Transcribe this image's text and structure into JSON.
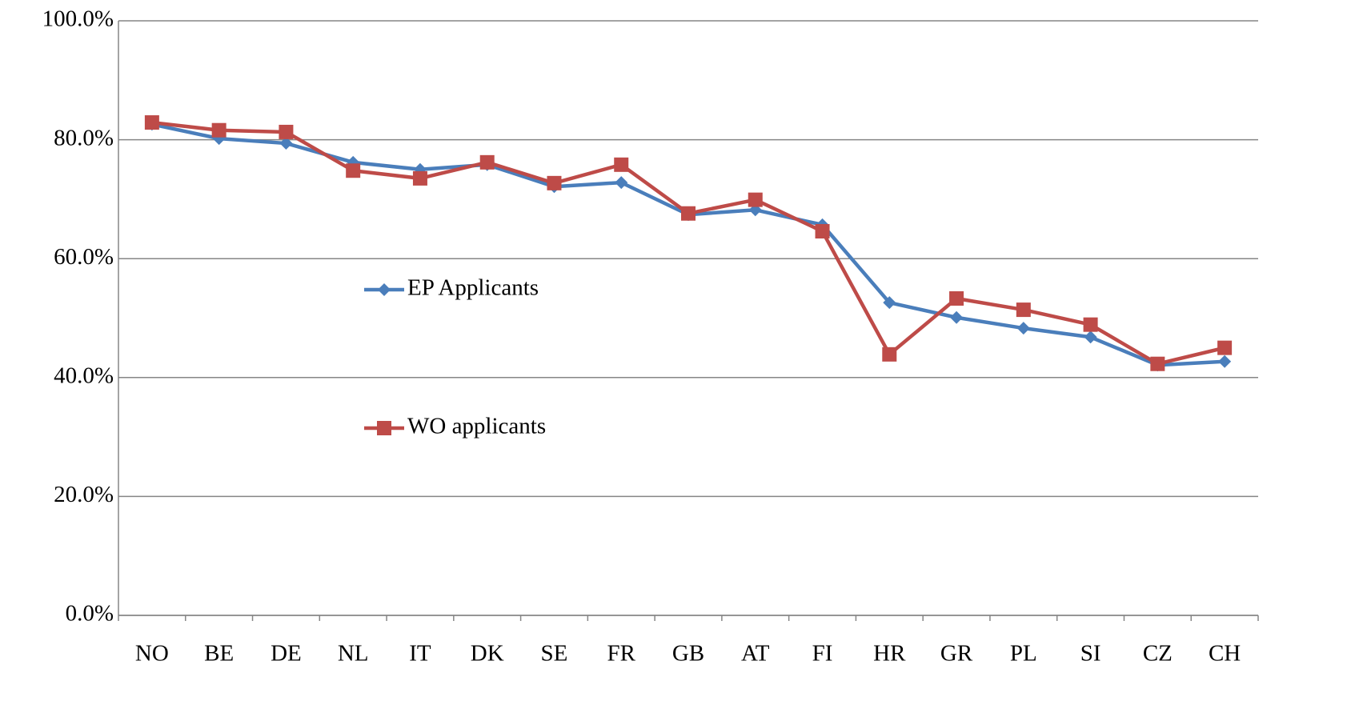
{
  "chart_data": {
    "type": "line",
    "categories": [
      "NO",
      "BE",
      "DE",
      "NL",
      "IT",
      "DK",
      "SE",
      "FR",
      "GB",
      "AT",
      "FI",
      "HR",
      "GR",
      "PL",
      "SI",
      "CZ",
      "CH"
    ],
    "series": [
      {
        "name": "EP Applicants",
        "color": "#4a7ebb",
        "marker": "diamond",
        "values": [
          82.6,
          80.2,
          79.4,
          76.2,
          75.0,
          75.8,
          72.1,
          72.8,
          67.4,
          68.2,
          65.7,
          52.6,
          50.1,
          48.3,
          46.8,
          42.1,
          42.7
        ]
      },
      {
        "name": "WO applicants",
        "color": "#be4b48",
        "marker": "square",
        "values": [
          82.9,
          81.6,
          81.3,
          74.8,
          73.5,
          76.2,
          72.7,
          75.8,
          67.6,
          69.9,
          64.6,
          43.9,
          53.3,
          51.4,
          48.9,
          42.3,
          45.0
        ]
      }
    ],
    "ylim": [
      0,
      100
    ],
    "yticks": [
      {
        "value": 0,
        "label": "0.0%"
      },
      {
        "value": 20,
        "label": "20.0%"
      },
      {
        "value": 40,
        "label": "40.0%"
      },
      {
        "value": 60,
        "label": "60.0%"
      },
      {
        "value": 80,
        "label": "80.0%"
      },
      {
        "value": 100,
        "label": "100.0%"
      }
    ],
    "grid": true,
    "legend": "center-left"
  }
}
